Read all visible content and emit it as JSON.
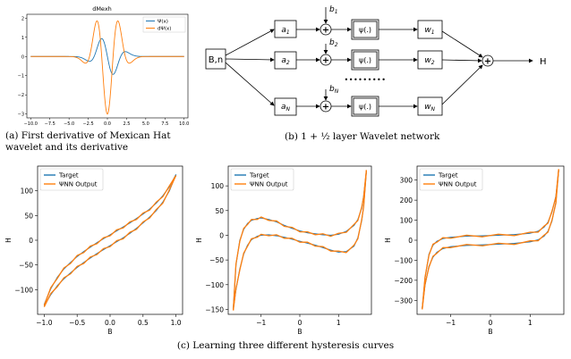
{
  "panel_a": {
    "caption": "(a)  First derivative of Mexican Hat wavelet and its derivative",
    "chart_data": {
      "type": "line",
      "title": "dMexh",
      "xlim": [
        -10.5,
        10.5
      ],
      "ylim": [
        -3.2,
        2.2
      ],
      "xticks": [
        "−10.0",
        "−7.5",
        "−5.0",
        "−2.5",
        "0.0",
        "2.5",
        "5.0",
        "7.5",
        "10.0"
      ],
      "xtick_values": [
        -10,
        -7.5,
        -5,
        -2.5,
        0,
        2.5,
        5,
        7.5,
        10
      ],
      "yticks": [
        "2",
        "1",
        "0",
        "−1",
        "−2",
        "−3"
      ],
      "ytick_values": [
        2,
        1,
        0,
        -1,
        -2,
        -3
      ],
      "legend_position": "upper-right",
      "series": [
        {
          "name": "Ψ(x)",
          "color": "#1f77b4",
          "formula": "psi"
        },
        {
          "name": "dΨ(x)",
          "color": "#ff7f0e",
          "formula": "dpsi"
        }
      ]
    }
  },
  "panel_b": {
    "caption": "(b) 1 + ½ layer Wavelet network",
    "input_label": "B,n",
    "output_label": "H",
    "a_labels": [
      "a1",
      "a2",
      "aN"
    ],
    "b_labels": [
      "b1",
      "b2",
      "bN"
    ],
    "psi_label": "ψ(.)",
    "w_labels": [
      "w1",
      "w2",
      "wN"
    ],
    "plus": "+",
    "dots": "•••••••••"
  },
  "panel_c": {
    "caption": "(c) Learning three different hysteresis curves",
    "charts": [
      {
        "type": "line",
        "xlabel": "B",
        "ylabel": "H",
        "xlim": [
          -1.1,
          1.1
        ],
        "ylim": [
          -150,
          150
        ],
        "xticks": [
          "−1.0",
          "−0.5",
          "0.0",
          "0.5",
          "1.0"
        ],
        "xtick_values": [
          -1,
          -0.5,
          0,
          0.5,
          1
        ],
        "yticks": [
          "100",
          "50",
          "0",
          "−50",
          "−100"
        ],
        "ytick_values": [
          100,
          50,
          0,
          -50,
          -100
        ],
        "legend": [
          "Target",
          "ΨNN Output"
        ],
        "legend_position": "upper-left",
        "colors": [
          "#1f77b4",
          "#ff7f0e"
        ],
        "series": [
          {
            "name": "upper branch",
            "x": [
              -1.0,
              -0.9,
              -0.8,
              -0.7,
              -0.6,
              -0.5,
              -0.4,
              -0.3,
              -0.2,
              -0.1,
              0.0,
              0.1,
              0.2,
              0.3,
              0.4,
              0.5,
              0.6,
              0.7,
              0.8,
              0.9,
              1.0
            ],
            "y": [
              -130,
              -98,
              -75,
              -58,
              -45,
              -33,
              -23,
              -14,
              -5,
              3,
              11,
              19,
              27,
              35,
              44,
              53,
              63,
              75,
              90,
              108,
              133
            ]
          },
          {
            "name": "lower branch",
            "x": [
              -1.0,
              -0.9,
              -0.8,
              -0.7,
              -0.6,
              -0.5,
              -0.4,
              -0.3,
              -0.2,
              -0.1,
              0.0,
              0.1,
              0.2,
              0.3,
              0.4,
              0.5,
              0.6,
              0.7,
              0.8,
              0.9,
              1.0
            ],
            "y": [
              -133,
              -110,
              -92,
              -78,
              -66,
              -55,
              -45,
              -36,
              -27,
              -19,
              -11,
              -3,
              5,
              14,
              24,
              35,
              47,
              60,
              77,
              100,
              133
            ]
          }
        ]
      },
      {
        "type": "line",
        "xlabel": "B",
        "ylabel": "H",
        "xlim": [
          -1.85,
          1.85
        ],
        "ylim": [
          -160,
          140
        ],
        "xticks": [
          "−1",
          "0",
          "1"
        ],
        "xtick_values": [
          -1,
          0,
          1
        ],
        "yticks": [
          "100",
          "50",
          "0",
          "−50",
          "−100",
          "−150"
        ],
        "ytick_values": [
          100,
          50,
          0,
          -50,
          -100,
          -150
        ],
        "legend": [
          "Target",
          "ΨNN Output"
        ],
        "legend_position": "upper-left",
        "colors": [
          "#1f77b4",
          "#ff7f0e"
        ],
        "series": [
          {
            "name": "upper branch",
            "x": [
              -1.72,
              -1.65,
              -1.55,
              -1.45,
              -1.35,
              -1.25,
              -1.1,
              -1.0,
              -0.8,
              -0.6,
              -0.4,
              -0.2,
              0.0,
              0.2,
              0.4,
              0.6,
              0.8,
              1.0,
              1.2,
              1.4,
              1.5,
              1.6,
              1.65,
              1.72
            ],
            "y": [
              -150,
              -60,
              -10,
              12,
              24,
              30,
              34,
              35,
              32,
              27,
              20,
              14,
              9,
              5,
              3,
              1,
              0,
              2,
              8,
              20,
              32,
              55,
              80,
              130
            ]
          },
          {
            "name": "lower branch",
            "x": [
              -1.72,
              -1.65,
              -1.55,
              -1.45,
              -1.35,
              -1.25,
              -1.1,
              -1.0,
              -0.8,
              -0.6,
              -0.4,
              -0.2,
              0.0,
              0.2,
              0.4,
              0.6,
              0.8,
              1.0,
              1.2,
              1.4,
              1.5,
              1.6,
              1.65,
              1.72
            ],
            "y": [
              -150,
              -110,
              -68,
              -38,
              -20,
              -9,
              -2,
              0,
              1,
              -1,
              -4,
              -8,
              -12,
              -16,
              -20,
              -25,
              -30,
              -34,
              -33,
              -22,
              -5,
              30,
              60,
              130
            ]
          }
        ]
      },
      {
        "type": "line",
        "xlabel": "B",
        "ylabel": "H",
        "xlim": [
          -1.85,
          1.85
        ],
        "ylim": [
          -370,
          370
        ],
        "xticks": [
          "−1",
          "0",
          "1"
        ],
        "xtick_values": [
          -1,
          0,
          1
        ],
        "yticks": [
          "300",
          "200",
          "100",
          "0",
          "−100",
          "−200",
          "−300"
        ],
        "ytick_values": [
          300,
          200,
          100,
          0,
          -100,
          -200,
          -300
        ],
        "legend": [
          "Target",
          "ΨNN Output"
        ],
        "legend_position": "upper-left",
        "colors": [
          "#1f77b4",
          "#ff7f0e"
        ],
        "series": [
          {
            "name": "upper branch",
            "x": [
              -1.72,
              -1.65,
              -1.55,
              -1.45,
              -1.35,
              -1.2,
              -1.0,
              -0.6,
              -0.2,
              0.2,
              0.6,
              1.0,
              1.2,
              1.35,
              1.45,
              1.55,
              1.65,
              1.72
            ],
            "y": [
              -340,
              -190,
              -70,
              -25,
              -5,
              8,
              15,
              20,
              22,
              25,
              28,
              35,
              45,
              65,
              90,
              140,
              220,
              350
            ]
          },
          {
            "name": "lower branch",
            "x": [
              -1.72,
              -1.65,
              -1.55,
              -1.45,
              -1.35,
              -1.2,
              -1.0,
              -0.6,
              -0.2,
              0.2,
              0.6,
              1.0,
              1.2,
              1.35,
              1.45,
              1.55,
              1.65,
              1.72
            ],
            "y": [
              -340,
              -225,
              -130,
              -85,
              -60,
              -42,
              -32,
              -26,
              -23,
              -20,
              -16,
              -8,
              2,
              20,
              45,
              95,
              190,
              350
            ]
          }
        ]
      }
    ]
  }
}
